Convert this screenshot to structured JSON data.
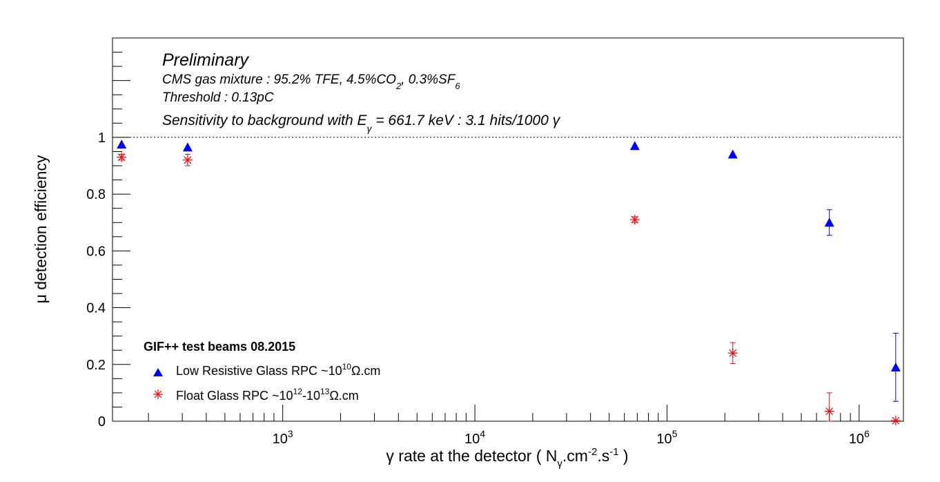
{
  "chart_data": {
    "type": "scatter",
    "x_scale": "log",
    "x_range": [
      130,
      1700000
    ],
    "y_range": [
      0,
      1.35
    ],
    "xlabel": {
      "prefix": "γ rate at the detector ( N",
      "sub1": "γ",
      "mid1": ".cm",
      "sup1": "-2",
      "mid2": ".s",
      "sup2": "-1",
      "suffix": " )"
    },
    "ylabel": "μ detection efficiency",
    "y_ticks": [
      {
        "value": 0,
        "label": "0"
      },
      {
        "value": 0.2,
        "label": "0.2"
      },
      {
        "value": 0.4,
        "label": "0.4"
      },
      {
        "value": 0.6,
        "label": "0.6"
      },
      {
        "value": 0.8,
        "label": "0.8"
      },
      {
        "value": 1,
        "label": "1"
      }
    ],
    "x_ticks": [
      {
        "value": 1000,
        "base": "10",
        "exp": "3"
      },
      {
        "value": 10000,
        "base": "10",
        "exp": "4"
      },
      {
        "value": 100000,
        "base": "10",
        "exp": "5"
      },
      {
        "value": 1000000,
        "base": "10",
        "exp": "6"
      }
    ],
    "reference_line": {
      "y": 1,
      "style": "dotted"
    },
    "annotations": {
      "preliminary": "Preliminary",
      "gas": {
        "prefix": "CMS gas mixture : 95.2% TFE, 4.5%CO",
        "sub1": "2",
        "mid": ", 0.3%SF",
        "sub2": "6"
      },
      "threshold": "Threshold : 0.13pC",
      "sensitivity": {
        "prefix": "Sensitivity to background with E",
        "sub": "γ",
        "suffix": " = 661.7 keV : 3.1 hits/1000 γ"
      }
    },
    "legend": {
      "title": "GIF++ test beams 08.2015",
      "position": "bottom-left",
      "entries": [
        {
          "prefix": "Low Resistive Glass RPC ~10",
          "sup1": "10",
          "suffix": "Ω.cm"
        },
        {
          "prefix": "Float Glass RPC ~10",
          "sup1": "12",
          "mid": "-10",
          "sup2": "13",
          "suffix": "Ω.cm"
        }
      ]
    },
    "series": [
      {
        "marker": "triangle",
        "color": "#0000ff",
        "points": [
          {
            "x": 145,
            "y": 0.975,
            "err": 0
          },
          {
            "x": 320,
            "y": 0.965,
            "err": 0
          },
          {
            "x": 68000,
            "y": 0.97,
            "err": 0
          },
          {
            "x": 220000,
            "y": 0.94,
            "err": 0
          },
          {
            "x": 700000,
            "y": 0.7,
            "err": 0.045
          },
          {
            "x": 1550000,
            "y": 0.19,
            "err": 0.12
          }
        ]
      },
      {
        "marker": "star",
        "color": "#ff0000",
        "points": [
          {
            "x": 145,
            "y": 0.93,
            "err": 0.01
          },
          {
            "x": 320,
            "y": 0.92,
            "err": 0.02
          },
          {
            "x": 68000,
            "y": 0.71,
            "err": 0.01
          },
          {
            "x": 220000,
            "y": 0.24,
            "err": 0.037
          },
          {
            "x": 700000,
            "y": 0.035,
            "err": 0.065
          },
          {
            "x": 1550000,
            "y": 0.002,
            "err": 0
          }
        ]
      }
    ]
  }
}
